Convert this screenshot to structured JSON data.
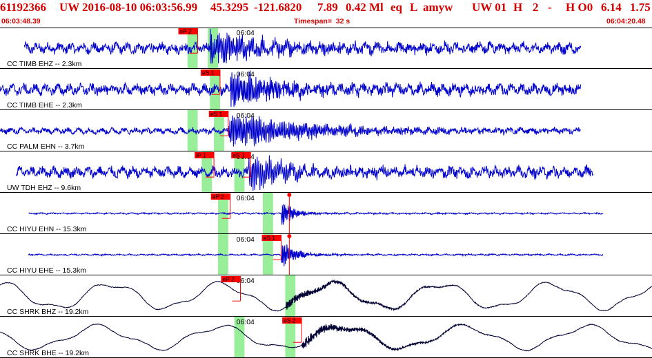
{
  "header": {
    "evid": "61192366",
    "network": "UW",
    "datetime": "2016-08-10 06:03:56.99",
    "lat": "45.3295",
    "lon": "-121.6820",
    "depth": "7.89",
    "magnitude": "0.42 Ml",
    "etype": "eq",
    "gtype": "L",
    "author": "amyw",
    "origin_src": "UW 01",
    "h": "H",
    "two": "2",
    "dash": "-",
    "ho": "H O0",
    "val1": "6.14",
    "val2": "1.75",
    "start_time": "06:03:48.39",
    "timespan": "Timespan=  32 s",
    "end_time": "06:04:20.48"
  },
  "colors": {
    "header_text": "#d40000",
    "trace": "#0000cc",
    "trace_long_period": "#000033",
    "pick_flag": "#ff0000",
    "phase_window": "#99ee99",
    "separator": "#000000"
  },
  "chart_data": {
    "type": "line",
    "x_start_seconds": 0,
    "x_end_seconds": 32,
    "minute_mark_label": "06:04",
    "minute_mark_seconds": 11.6,
    "channels": [
      {
        "label": "CC TIMB EHZ -- 2.3km",
        "color": "#0000cc",
        "sig_start": 1.2,
        "sig_end": 28.5,
        "noise": 0.22,
        "onset": 10.3,
        "amp": 0.85,
        "decay": 2.2,
        "freq": 2.2,
        "long_period": false,
        "picks": [
          {
            "label": "eP 2",
            "t": 9.7
          }
        ],
        "windows": [
          [
            9.2,
            9.7
          ],
          [
            10.2,
            10.7
          ]
        ]
      },
      {
        "label": "CC TIMB EHE -- 2.3km",
        "color": "#0000cc",
        "sig_start": 0,
        "sig_end": 28.5,
        "noise": 0.22,
        "onset": 11.3,
        "amp": 0.9,
        "decay": 2.0,
        "freq": 2.4,
        "long_period": false,
        "picks": [
          {
            "label": "eS 1",
            "t": 10.8
          }
        ],
        "windows": [
          [
            10.3,
            10.8
          ]
        ]
      },
      {
        "label": "CC PALM EHN -- 3.7km",
        "color": "#0000cc",
        "sig_start": 0,
        "sig_end": 28.5,
        "noise": 0.12,
        "onset": 11.2,
        "amp": 0.95,
        "decay": 3.5,
        "freq": 2.3,
        "long_period": false,
        "picks": [
          {
            "label": "eS 1",
            "t": 11.2
          }
        ],
        "windows": [
          [
            9.2,
            9.7
          ],
          [
            10.5,
            11.0
          ]
        ]
      },
      {
        "label": "UW TDH EHZ -- 9.6km",
        "color": "#0000cc",
        "sig_start": 0.8,
        "sig_end": 29.1,
        "noise": 0.22,
        "onset": 12.2,
        "amp": 0.95,
        "decay": 1.4,
        "freq": 2.0,
        "long_period": false,
        "picks": [
          {
            "label": "iP 1",
            "t": 10.5
          },
          {
            "label": "eS 1",
            "t": 12.3
          }
        ],
        "windows": [
          [
            9.9,
            10.4
          ],
          [
            11.5,
            12.0
          ]
        ]
      },
      {
        "label": "CC HIYU EHN -- 15.3km",
        "color": "#0000cc",
        "sig_start": 1.4,
        "sig_end": 29.6,
        "noise": 0.03,
        "onset": 13.8,
        "amp": 0.9,
        "decay": 0.5,
        "freq": 3.0,
        "long_period": false,
        "picks": [
          {
            "label": "eP 2",
            "t": 11.3
          },
          {
            "label": "",
            "t": 14.2,
            "dot": true
          }
        ],
        "windows": [
          [
            10.7,
            11.2
          ],
          [
            12.9,
            13.4
          ]
        ]
      },
      {
        "label": "CC HIYU EHE -- 15.3km",
        "color": "#0000cc",
        "sig_start": 1.4,
        "sig_end": 29.6,
        "noise": 0.03,
        "onset": 13.8,
        "amp": 0.9,
        "decay": 0.6,
        "freq": 3.0,
        "long_period": false,
        "picks": [
          {
            "label": "eS 1",
            "t": 13.8
          },
          {
            "label": "",
            "t": 14.2,
            "dot": true
          }
        ],
        "windows": [
          [
            10.7,
            11.2
          ],
          [
            12.9,
            13.4
          ]
        ]
      },
      {
        "label": "CC SHRK BHZ -- 19.2km",
        "color": "#000033",
        "sig_start": 0,
        "sig_end": 32,
        "noise": 0.015,
        "onset": 14.0,
        "amp": 0.25,
        "decay": 3.0,
        "freq": 3.5,
        "long_period": true,
        "lp_amp": 0.62,
        "lp_period": 5.4,
        "picks": [
          {
            "label": "eP 2",
            "t": 11.8
          }
        ],
        "windows": [
          [
            14.0,
            14.5
          ]
        ]
      },
      {
        "label": "CC SHRK BHE -- 19.2km",
        "color": "#000033",
        "sig_start": 0,
        "sig_end": 32,
        "noise": 0.015,
        "onset": 14.8,
        "amp": 0.3,
        "decay": 3.0,
        "freq": 3.5,
        "long_period": true,
        "lp_amp": 0.55,
        "lp_period": 6.0,
        "picks": [
          {
            "label": "eS 2",
            "t": 14.8
          }
        ],
        "windows": [
          [
            11.5,
            12.0
          ],
          [
            14.0,
            14.5
          ]
        ]
      }
    ]
  }
}
